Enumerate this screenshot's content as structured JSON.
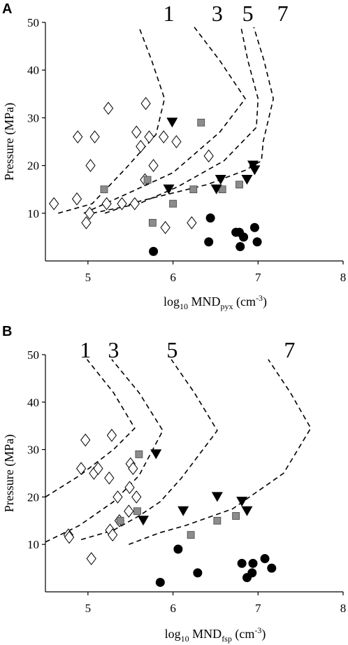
{
  "chart_data": [
    {
      "panel": "A",
      "type": "scatter",
      "xlabel": "log10 MNDpyx (cm-3)",
      "xlabel_parts": {
        "pre": "log",
        "pre_sub": "10",
        "mid": " MND",
        "mid_sub": "pyx",
        "post": " (cm",
        "post_sup": "-3",
        "end": ")"
      },
      "ylabel": "Pressure (MPa)",
      "xlim": [
        4.5,
        8
      ],
      "ylim": [
        0,
        50
      ],
      "xticks": [
        "5",
        "6",
        "7",
        "8"
      ],
      "yticks": [
        "10",
        "20",
        "30",
        "40",
        "50"
      ],
      "contours": [
        {
          "label": "1",
          "label_x": 5.95,
          "points": [
            [
              4.65,
              10
            ],
            [
              5.05,
              12
            ],
            [
              5.45,
              19.5
            ],
            [
              5.8,
              26.5
            ],
            [
              5.9,
              34
            ],
            [
              5.75,
              42
            ],
            [
              5.6,
              49
            ]
          ]
        },
        {
          "label": "3",
          "label_x": 6.52,
          "points": [
            [
              4.95,
              10
            ],
            [
              5.45,
              14
            ],
            [
              6.0,
              18.5
            ],
            [
              6.55,
              27
            ],
            [
              6.85,
              34
            ],
            [
              6.55,
              42
            ],
            [
              6.25,
              49
            ]
          ]
        },
        {
          "label": "5",
          "label_x": 6.88,
          "points": [
            [
              5.05,
              10
            ],
            [
              5.6,
              12
            ],
            [
              6.05,
              15.5
            ],
            [
              6.6,
              21
            ],
            [
              6.98,
              28
            ],
            [
              7.0,
              34
            ],
            [
              6.88,
              42
            ],
            [
              6.8,
              49
            ]
          ]
        },
        {
          "label": "7",
          "label_x": 7.29,
          "points": [
            [
              5.2,
              10
            ],
            [
              5.6,
              12.5
            ],
            [
              6.4,
              16
            ],
            [
              6.85,
              19
            ],
            [
              7.04,
              21
            ],
            [
              7.06,
              25
            ],
            [
              7.18,
              34
            ],
            [
              7.07,
              42
            ],
            [
              6.95,
              49
            ]
          ]
        }
      ],
      "series": [
        {
          "marker": "diamond",
          "points": [
            [
              4.6,
              12
            ],
            [
              4.87,
              13
            ],
            [
              4.88,
              26
            ],
            [
              4.98,
              8
            ],
            [
              5.02,
              10
            ],
            [
              5.03,
              20
            ],
            [
              5.08,
              26
            ],
            [
              5.22,
              12
            ],
            [
              5.24,
              32
            ],
            [
              5.4,
              12
            ],
            [
              5.55,
              12
            ],
            [
              5.57,
              27
            ],
            [
              5.62,
              24
            ],
            [
              5.67,
              17
            ],
            [
              5.68,
              33
            ],
            [
              5.72,
              26
            ],
            [
              5.77,
              20
            ],
            [
              5.89,
              26
            ],
            [
              5.91,
              7
            ],
            [
              6.04,
              25
            ],
            [
              6.22,
              8
            ],
            [
              6.42,
              22
            ]
          ]
        },
        {
          "marker": "square",
          "points": [
            [
              5.19,
              15
            ],
            [
              5.7,
              17
            ],
            [
              5.76,
              8
            ],
            [
              6.0,
              12
            ],
            [
              6.24,
              15
            ],
            [
              6.33,
              29
            ],
            [
              6.58,
              15
            ],
            [
              6.78,
              16
            ]
          ]
        },
        {
          "marker": "triangle-down",
          "points": [
            [
              5.95,
              15
            ],
            [
              5.99,
              29
            ],
            [
              6.51,
              15
            ],
            [
              6.56,
              17
            ],
            [
              6.87,
              17
            ],
            [
              6.94,
              20
            ],
            [
              6.96,
              19
            ]
          ]
        },
        {
          "marker": "circle",
          "points": [
            [
              5.77,
              2
            ],
            [
              6.42,
              4
            ],
            [
              6.44,
              9
            ],
            [
              6.74,
              6
            ],
            [
              6.78,
              6
            ],
            [
              6.79,
              3
            ],
            [
              6.83,
              5
            ],
            [
              6.96,
              7
            ],
            [
              6.99,
              4
            ]
          ]
        }
      ]
    },
    {
      "panel": "B",
      "type": "scatter",
      "xlabel": "log10 MNDfsp (cm-3)",
      "xlabel_parts": {
        "pre": "log",
        "pre_sub": "10",
        "mid": " MND",
        "mid_sub": "fsp",
        "post": " (cm",
        "post_sup": "-3",
        "end": ")"
      },
      "ylabel": "Pressure (MPa)",
      "xlim": [
        4.5,
        8
      ],
      "ylim": [
        0,
        50
      ],
      "xticks": [
        "5",
        "6",
        "7",
        "8"
      ],
      "yticks": [
        "10",
        "20",
        "30",
        "40",
        "50"
      ],
      "contours": [
        {
          "label": "1",
          "label_x": 4.97,
          "points": [
            [
              4.5,
              20
            ],
            [
              4.9,
              24.5
            ],
            [
              5.3,
              30
            ],
            [
              5.55,
              34.5
            ],
            [
              5.3,
              42
            ],
            [
              4.99,
              49
            ]
          ]
        },
        {
          "label": "3",
          "label_x": 5.3,
          "points": [
            [
              4.5,
              10.5
            ],
            [
              4.9,
              14
            ],
            [
              5.3,
              19
            ],
            [
              5.6,
              24.5
            ],
            [
              5.88,
              34
            ],
            [
              5.6,
              42
            ],
            [
              5.28,
              49
            ]
          ]
        },
        {
          "label": "5",
          "label_x": 5.99,
          "points": [
            [
              4.92,
              11
            ],
            [
              5.3,
              13
            ],
            [
              5.6,
              16
            ],
            [
              5.85,
              19
            ],
            [
              6.1,
              24
            ],
            [
              6.52,
              34
            ],
            [
              6.25,
              42
            ],
            [
              5.98,
              49
            ]
          ]
        },
        {
          "label": "7",
          "label_x": 7.37,
          "points": [
            [
              5.48,
              10
            ],
            [
              5.85,
              12.5
            ],
            [
              6.15,
              14
            ],
            [
              6.7,
              17.5
            ],
            [
              7.3,
              25
            ],
            [
              7.62,
              34.5
            ],
            [
              7.38,
              42
            ],
            [
              7.12,
              49
            ]
          ]
        }
      ],
      "series": [
        {
          "marker": "diamond",
          "points": [
            [
              4.77,
              12
            ],
            [
              4.78,
              11.5
            ],
            [
              4.92,
              26
            ],
            [
              4.97,
              32
            ],
            [
              5.04,
              7
            ],
            [
              5.07,
              25
            ],
            [
              5.12,
              26
            ],
            [
              5.25,
              24
            ],
            [
              5.26,
              13
            ],
            [
              5.28,
              33
            ],
            [
              5.29,
              12
            ],
            [
              5.35,
              20
            ],
            [
              5.37,
              15
            ],
            [
              5.48,
              17
            ],
            [
              5.49,
              22
            ],
            [
              5.5,
              27
            ],
            [
              5.53,
              26
            ],
            [
              5.57,
              20
            ]
          ]
        },
        {
          "marker": "square",
          "points": [
            [
              5.38,
              15
            ],
            [
              5.58,
              17
            ],
            [
              5.6,
              29
            ],
            [
              6.21,
              12
            ],
            [
              6.52,
              15
            ],
            [
              6.74,
              16
            ]
          ]
        },
        {
          "marker": "triangle-down",
          "points": [
            [
              5.65,
              15
            ],
            [
              5.8,
              29
            ],
            [
              6.12,
              17
            ],
            [
              6.52,
              20
            ],
            [
              6.81,
              19
            ],
            [
              6.87,
              17
            ]
          ]
        },
        {
          "marker": "circle",
          "points": [
            [
              5.85,
              2
            ],
            [
              6.06,
              9
            ],
            [
              6.29,
              4
            ],
            [
              6.81,
              6
            ],
            [
              6.87,
              3
            ],
            [
              6.93,
              4
            ],
            [
              6.94,
              6
            ],
            [
              7.08,
              7
            ],
            [
              7.16,
              5
            ]
          ]
        }
      ]
    }
  ],
  "panels": [
    {
      "letter": "A"
    },
    {
      "letter": "B"
    }
  ]
}
